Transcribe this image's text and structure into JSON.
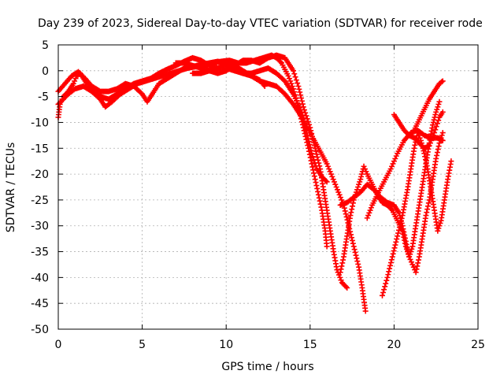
{
  "chart_data": {
    "type": "scatter",
    "title": "Day 239 of 2023, Sidereal Day-to-day VTEC variation (SDTVAR) for receiver rode",
    "xlabel": "GPS time / hours",
    "ylabel": "SDTVAR / TECUs",
    "xlim": [
      0,
      25
    ],
    "ylim": [
      -50,
      5
    ],
    "xticks": [
      0,
      5,
      10,
      15,
      20,
      25
    ],
    "yticks": [
      5,
      0,
      -5,
      -10,
      -15,
      -20,
      -25,
      -30,
      -35,
      -40,
      -45,
      -50
    ],
    "grid": true,
    "marker": "plus",
    "color": "#ff0000",
    "series": [
      {
        "points": [
          [
            0.0,
            -9.0
          ],
          [
            0.1,
            -6.5
          ],
          [
            0.3,
            -5.0
          ],
          [
            0.6,
            -4.0
          ],
          [
            0.9,
            -2.5
          ],
          [
            1.1,
            -1.0
          ],
          [
            1.3,
            -0.5
          ],
          [
            1.6,
            -2.0
          ],
          [
            2.0,
            -4.0
          ],
          [
            2.5,
            -5.0
          ],
          [
            3.0,
            -5.5
          ],
          [
            3.5,
            -4.5
          ],
          [
            4.0,
            -3.5
          ],
          [
            4.5,
            -2.5
          ],
          [
            5.0,
            -2.0
          ],
          [
            5.5,
            -1.5
          ],
          [
            6.0,
            -0.5
          ],
          [
            6.5,
            0.3
          ],
          [
            7.0,
            1.0
          ],
          [
            7.5,
            1.8
          ],
          [
            8.0,
            2.5
          ],
          [
            8.5,
            2.0
          ],
          [
            9.0,
            1.0
          ],
          [
            9.5,
            0.5
          ],
          [
            10.0,
            0.5
          ],
          [
            10.5,
            0.0
          ],
          [
            11.0,
            -0.5
          ],
          [
            11.5,
            -1.0
          ],
          [
            12.0,
            -1.8
          ],
          [
            12.3,
            -3.0
          ]
        ]
      },
      {
        "points": [
          [
            0.0,
            -6.5
          ],
          [
            0.3,
            -5.5
          ],
          [
            0.6,
            -4.5
          ],
          [
            1.0,
            -3.5
          ],
          [
            1.5,
            -3.0
          ],
          [
            2.0,
            -4.0
          ],
          [
            2.5,
            -5.5
          ],
          [
            2.8,
            -7.0
          ],
          [
            3.2,
            -6.0
          ],
          [
            3.7,
            -4.5
          ],
          [
            4.2,
            -3.5
          ],
          [
            4.7,
            -2.5
          ],
          [
            5.2,
            -2.0
          ],
          [
            5.7,
            -1.5
          ],
          [
            6.2,
            -1.0
          ],
          [
            6.7,
            -0.5
          ],
          [
            7.2,
            0.0
          ],
          [
            7.7,
            0.5
          ],
          [
            8.2,
            0.8
          ],
          [
            8.7,
            1.0
          ],
          [
            9.2,
            1.5
          ],
          [
            9.7,
            1.8
          ],
          [
            10.2,
            2.0
          ],
          [
            10.7,
            1.5
          ],
          [
            11.2,
            1.5
          ],
          [
            11.7,
            2.0
          ],
          [
            12.2,
            2.5
          ],
          [
            12.7,
            3.0
          ],
          [
            13.0,
            2.5
          ],
          [
            13.3,
            1.5
          ],
          [
            13.7,
            -1.0
          ],
          [
            14.0,
            -3.5
          ],
          [
            14.3,
            -7.0
          ],
          [
            14.6,
            -11.0
          ],
          [
            14.9,
            -15.0
          ],
          [
            15.1,
            -18.0
          ],
          [
            15.3,
            -21.0
          ],
          [
            15.5,
            -24.0
          ],
          [
            15.7,
            -27.0
          ],
          [
            15.9,
            -31.0
          ],
          [
            16.0,
            -34.0
          ]
        ]
      },
      {
        "points": [
          [
            0.0,
            -4.0
          ],
          [
            0.4,
            -2.5
          ],
          [
            0.8,
            -1.0
          ],
          [
            1.2,
            -0.2
          ],
          [
            1.6,
            -1.5
          ],
          [
            2.0,
            -3.0
          ],
          [
            2.5,
            -4.0
          ],
          [
            3.0,
            -4.0
          ],
          [
            3.5,
            -3.5
          ],
          [
            4.0,
            -2.5
          ],
          [
            4.5,
            -3.0
          ],
          [
            5.0,
            -4.5
          ],
          [
            5.3,
            -6.0
          ],
          [
            5.6,
            -4.5
          ],
          [
            6.0,
            -2.5
          ],
          [
            6.5,
            -1.5
          ],
          [
            7.0,
            -0.5
          ],
          [
            7.5,
            0.5
          ],
          [
            8.0,
            0.8
          ],
          [
            8.5,
            1.2
          ],
          [
            9.0,
            1.5
          ],
          [
            9.5,
            1.8
          ],
          [
            10.0,
            1.5
          ],
          [
            10.5,
            0.5
          ],
          [
            11.0,
            -0.5
          ],
          [
            11.5,
            -0.5
          ],
          [
            12.0,
            0.0
          ],
          [
            12.5,
            0.5
          ],
          [
            13.0,
            -0.5
          ],
          [
            13.5,
            -2.0
          ],
          [
            14.0,
            -4.5
          ],
          [
            14.5,
            -8.0
          ],
          [
            14.8,
            -12.0
          ],
          [
            15.1,
            -16.0
          ],
          [
            15.4,
            -19.0
          ],
          [
            15.7,
            -20.5
          ],
          [
            16.0,
            -21.5
          ]
        ]
      },
      {
        "points": [
          [
            7.0,
            1.5
          ],
          [
            7.5,
            1.5
          ],
          [
            8.0,
            1.0
          ],
          [
            8.5,
            0.5
          ],
          [
            9.0,
            0.0
          ],
          [
            9.5,
            -0.5
          ],
          [
            10.0,
            0.0
          ],
          [
            10.5,
            1.0
          ],
          [
            11.0,
            2.0
          ],
          [
            11.5,
            2.0
          ],
          [
            12.0,
            1.5
          ],
          [
            12.5,
            2.5
          ],
          [
            13.0,
            3.0
          ],
          [
            13.5,
            2.5
          ],
          [
            14.0,
            0.0
          ],
          [
            14.3,
            -3.0
          ],
          [
            14.6,
            -7.0
          ],
          [
            15.0,
            -11.0
          ],
          [
            15.3,
            -15.0
          ],
          [
            15.6,
            -19.0
          ],
          [
            15.8,
            -23.0
          ],
          [
            16.0,
            -27.0
          ],
          [
            16.2,
            -31.0
          ],
          [
            16.4,
            -35.0
          ],
          [
            16.6,
            -38.5
          ],
          [
            16.9,
            -41.0
          ],
          [
            17.2,
            -42.0
          ]
        ]
      },
      {
        "points": [
          [
            8.0,
            -0.5
          ],
          [
            8.5,
            -0.5
          ],
          [
            9.0,
            0.0
          ],
          [
            9.5,
            0.5
          ],
          [
            10.0,
            1.5
          ],
          [
            10.5,
            1.0
          ],
          [
            11.0,
            0.0
          ],
          [
            11.5,
            -1.0
          ],
          [
            12.0,
            -2.0
          ],
          [
            12.5,
            -2.5
          ],
          [
            13.0,
            -3.0
          ],
          [
            13.5,
            -4.5
          ],
          [
            14.0,
            -6.5
          ],
          [
            14.5,
            -9.0
          ],
          [
            15.0,
            -12.0
          ],
          [
            15.5,
            -15.0
          ],
          [
            16.0,
            -18.0
          ],
          [
            16.5,
            -22.0
          ],
          [
            17.0,
            -26.0
          ],
          [
            17.3,
            -30.0
          ],
          [
            17.6,
            -34.0
          ],
          [
            17.9,
            -38.0
          ],
          [
            18.1,
            -42.0
          ],
          [
            18.3,
            -46.5
          ]
        ]
      },
      {
        "points": [
          [
            16.8,
            -39.0
          ],
          [
            17.0,
            -36.0
          ],
          [
            17.2,
            -32.0
          ],
          [
            17.4,
            -28.0
          ],
          [
            17.6,
            -25.0
          ],
          [
            17.8,
            -23.0
          ],
          [
            18.0,
            -21.0
          ],
          [
            18.2,
            -18.5
          ],
          [
            18.4,
            -20.0
          ],
          [
            18.7,
            -22.0
          ],
          [
            19.0,
            -24.0
          ],
          [
            19.3,
            -25.5
          ],
          [
            19.6,
            -26.0
          ],
          [
            19.9,
            -27.0
          ],
          [
            20.2,
            -29.0
          ],
          [
            20.5,
            -31.0
          ],
          [
            20.7,
            -34.0
          ],
          [
            20.9,
            -36.0
          ],
          [
            21.1,
            -37.5
          ],
          [
            21.3,
            -39.0
          ],
          [
            21.5,
            -36.0
          ],
          [
            21.7,
            -32.0
          ],
          [
            21.9,
            -28.0
          ],
          [
            22.1,
            -25.0
          ],
          [
            22.3,
            -21.0
          ],
          [
            22.5,
            -17.0
          ],
          [
            22.7,
            -14.0
          ],
          [
            22.9,
            -12.0
          ]
        ]
      },
      {
        "points": [
          [
            16.8,
            -26.0
          ],
          [
            17.2,
            -25.5
          ],
          [
            17.6,
            -24.5
          ],
          [
            18.0,
            -23.5
          ],
          [
            18.4,
            -22.0
          ],
          [
            18.8,
            -23.0
          ],
          [
            19.2,
            -24.5
          ],
          [
            19.6,
            -25.5
          ],
          [
            20.0,
            -26.0
          ],
          [
            20.3,
            -27.5
          ],
          [
            20.5,
            -30.0
          ],
          [
            20.7,
            -33.0
          ],
          [
            20.9,
            -36.0
          ],
          [
            21.1,
            -34.0
          ],
          [
            21.3,
            -30.0
          ],
          [
            21.5,
            -26.0
          ],
          [
            21.7,
            -22.0
          ],
          [
            21.9,
            -18.0
          ],
          [
            22.1,
            -14.0
          ],
          [
            22.3,
            -10.5
          ],
          [
            22.5,
            -8.0
          ],
          [
            22.7,
            -6.0
          ]
        ]
      },
      {
        "points": [
          [
            19.3,
            -43.5
          ],
          [
            19.6,
            -40.0
          ],
          [
            19.9,
            -36.0
          ],
          [
            20.2,
            -32.0
          ],
          [
            20.5,
            -28.0
          ],
          [
            20.8,
            -23.0
          ],
          [
            21.0,
            -19.0
          ],
          [
            21.2,
            -15.0
          ],
          [
            21.4,
            -12.0
          ],
          [
            21.6,
            -13.5
          ],
          [
            21.8,
            -16.0
          ],
          [
            22.0,
            -19.0
          ],
          [
            22.2,
            -23.0
          ],
          [
            22.4,
            -27.0
          ],
          [
            22.6,
            -31.0
          ],
          [
            22.8,
            -29.0
          ],
          [
            23.0,
            -25.0
          ],
          [
            23.2,
            -21.0
          ],
          [
            23.4,
            -17.5
          ]
        ]
      },
      {
        "points": [
          [
            18.4,
            -28.5
          ],
          [
            18.7,
            -26.0
          ],
          [
            19.0,
            -24.0
          ],
          [
            19.4,
            -21.5
          ],
          [
            19.8,
            -19.0
          ],
          [
            20.2,
            -16.0
          ],
          [
            20.6,
            -13.5
          ],
          [
            21.0,
            -12.0
          ],
          [
            21.4,
            -11.5
          ],
          [
            21.8,
            -12.5
          ],
          [
            22.2,
            -13.0
          ],
          [
            22.6,
            -13.0
          ],
          [
            22.9,
            -13.5
          ]
        ]
      },
      {
        "points": [
          [
            20.0,
            -8.5
          ],
          [
            20.3,
            -10.0
          ],
          [
            20.6,
            -11.5
          ],
          [
            20.9,
            -12.5
          ],
          [
            21.2,
            -13.0
          ],
          [
            21.5,
            -14.0
          ],
          [
            21.8,
            -15.0
          ],
          [
            22.1,
            -14.5
          ],
          [
            22.4,
            -12.0
          ],
          [
            22.7,
            -9.0
          ],
          [
            22.9,
            -8.0
          ]
        ]
      },
      {
        "points": [
          [
            21.2,
            -11.5
          ],
          [
            21.5,
            -9.5
          ],
          [
            21.8,
            -7.5
          ],
          [
            22.1,
            -5.5
          ],
          [
            22.4,
            -4.0
          ],
          [
            22.7,
            -2.5
          ],
          [
            22.9,
            -2.0
          ]
        ]
      }
    ]
  }
}
